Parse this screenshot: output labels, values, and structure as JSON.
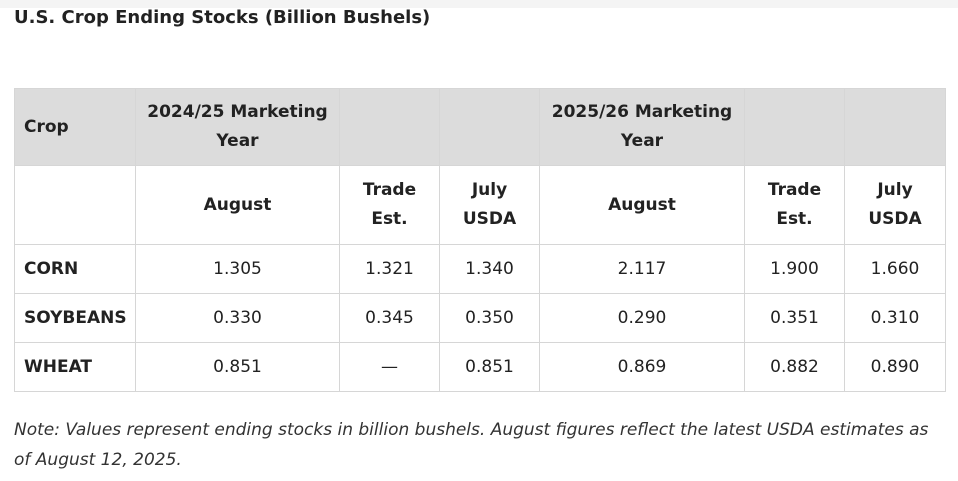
{
  "title": "U.S. Crop Ending Stocks (Billion Bushels)",
  "table": {
    "header_row1": [
      "Crop",
      "2024/25 Marketing Year",
      "",
      "",
      "2025/26 Marketing Year",
      "",
      ""
    ],
    "header_row2": [
      "",
      "August",
      "Trade Est.",
      "July USDA",
      "August",
      "Trade Est.",
      "July USDA"
    ],
    "rows": [
      {
        "crop": "CORN",
        "values": [
          "1.305",
          "1.321",
          "1.340",
          "2.117",
          "1.900",
          "1.660"
        ]
      },
      {
        "crop": "SOYBEANS",
        "values": [
          "0.330",
          "0.345",
          "0.350",
          "0.290",
          "0.351",
          "0.310"
        ]
      },
      {
        "crop": "WHEAT",
        "values": [
          "0.851",
          "—",
          "0.851",
          "0.869",
          "0.882",
          "0.890"
        ]
      }
    ]
  },
  "note": "Note: Values represent ending stocks in billion bushels. August figures reflect the latest USDA estimates as of August 12, 2025."
}
